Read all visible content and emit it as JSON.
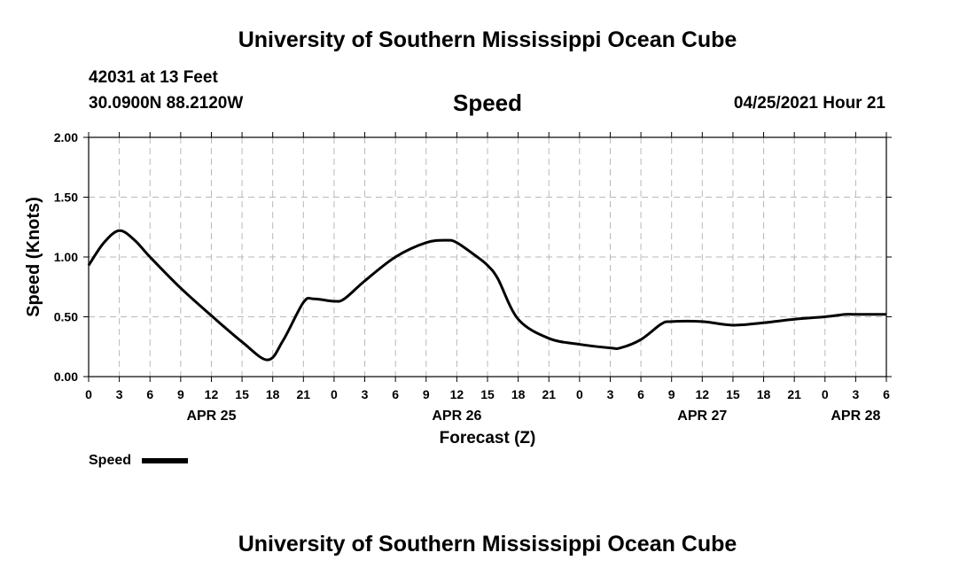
{
  "header": {
    "title": "University of Southern Mississippi Ocean Cube",
    "station": "42031 at 13 Feet",
    "coordinates": "30.0900N  88.2120W",
    "chart_title": "Speed",
    "date": "04/25/2021 Hour 21"
  },
  "footer": {
    "title": "University of Southern Mississippi Ocean Cube"
  },
  "chart_data": {
    "type": "line",
    "title": "Speed",
    "xlabel": "Forecast (Z)",
    "ylabel": "Speed (Knots)",
    "ylim": [
      0,
      2
    ],
    "y_ticks": [
      "0.00",
      "0.50",
      "1.00",
      "1.50",
      "2.00"
    ],
    "x_unit": "forecast hour (Z) starting APR 25 00Z",
    "xlim": [
      0,
      78
    ],
    "x_tick_labels": [
      "0",
      "3",
      "6",
      "9",
      "12",
      "15",
      "18",
      "21",
      "0",
      "3",
      "6",
      "9",
      "12",
      "15",
      "18",
      "21",
      "0",
      "3",
      "6",
      "9",
      "12",
      "15",
      "18",
      "21",
      "0",
      "3",
      "6"
    ],
    "x_tick_step": 3,
    "date_labels": [
      {
        "label": "APR 25",
        "at_hour": 12
      },
      {
        "label": "APR 26",
        "at_hour": 36
      },
      {
        "label": "APR 27",
        "at_hour": 60
      },
      {
        "label": "APR 28",
        "at_hour": 75
      }
    ],
    "grid": true,
    "legend": {
      "position": "bottom-left",
      "label": "Speed"
    },
    "series": [
      {
        "name": "Speed",
        "color": "#000000",
        "x": [
          0,
          1.5,
          3,
          4.5,
          6,
          9,
          12,
          15,
          17.5,
          19,
          21,
          22,
          24,
          25,
          27,
          30,
          33,
          35,
          36,
          38,
          39,
          40,
          42,
          45,
          48,
          51,
          52,
          54,
          56,
          57,
          60,
          63,
          66,
          69,
          72,
          74,
          75,
          78
        ],
        "values": [
          0.93,
          1.12,
          1.22,
          1.14,
          1.0,
          0.74,
          0.51,
          0.29,
          0.14,
          0.3,
          0.62,
          0.65,
          0.63,
          0.65,
          0.8,
          1.0,
          1.12,
          1.14,
          1.12,
          1.0,
          0.93,
          0.82,
          0.48,
          0.32,
          0.27,
          0.24,
          0.24,
          0.31,
          0.44,
          0.46,
          0.46,
          0.43,
          0.45,
          0.48,
          0.5,
          0.52,
          0.52,
          0.52
        ]
      }
    ]
  }
}
